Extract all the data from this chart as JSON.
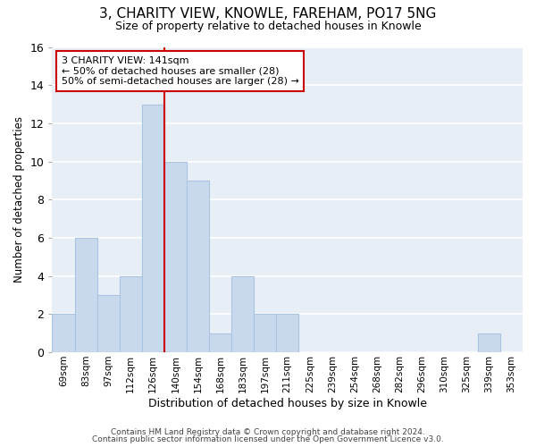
{
  "title": "3, CHARITY VIEW, KNOWLE, FAREHAM, PO17 5NG",
  "subtitle": "Size of property relative to detached houses in Knowle",
  "xlabel": "Distribution of detached houses by size in Knowle",
  "ylabel": "Number of detached properties",
  "bar_color": "#c9d9ed",
  "bar_edge_color": "#a8c4e0",
  "categories": [
    "69sqm",
    "83sqm",
    "97sqm",
    "112sqm",
    "126sqm",
    "140sqm",
    "154sqm",
    "168sqm",
    "183sqm",
    "197sqm",
    "211sqm",
    "225sqm",
    "239sqm",
    "254sqm",
    "268sqm",
    "282sqm",
    "296sqm",
    "310sqm",
    "325sqm",
    "339sqm",
    "353sqm"
  ],
  "values": [
    2,
    6,
    3,
    4,
    13,
    10,
    9,
    1,
    4,
    2,
    2,
    0,
    0,
    0,
    0,
    0,
    0,
    0,
    0,
    1,
    0
  ],
  "ylim": [
    0,
    16
  ],
  "yticks": [
    0,
    2,
    4,
    6,
    8,
    10,
    12,
    14,
    16
  ],
  "property_line_color": "#cc0000",
  "annotation_title": "3 CHARITY VIEW: 141sqm",
  "annotation_line1": "← 50% of detached houses are smaller (28)",
  "annotation_line2": "50% of semi-detached houses are larger (28) →",
  "annotation_box_color": "#ffffff",
  "annotation_box_edge": "#cc0000",
  "footnote1": "Contains HM Land Registry data © Crown copyright and database right 2024.",
  "footnote2": "Contains public sector information licensed under the Open Government Licence v3.0.",
  "background_color": "#ffffff",
  "axes_bg_color": "#e8eef5"
}
